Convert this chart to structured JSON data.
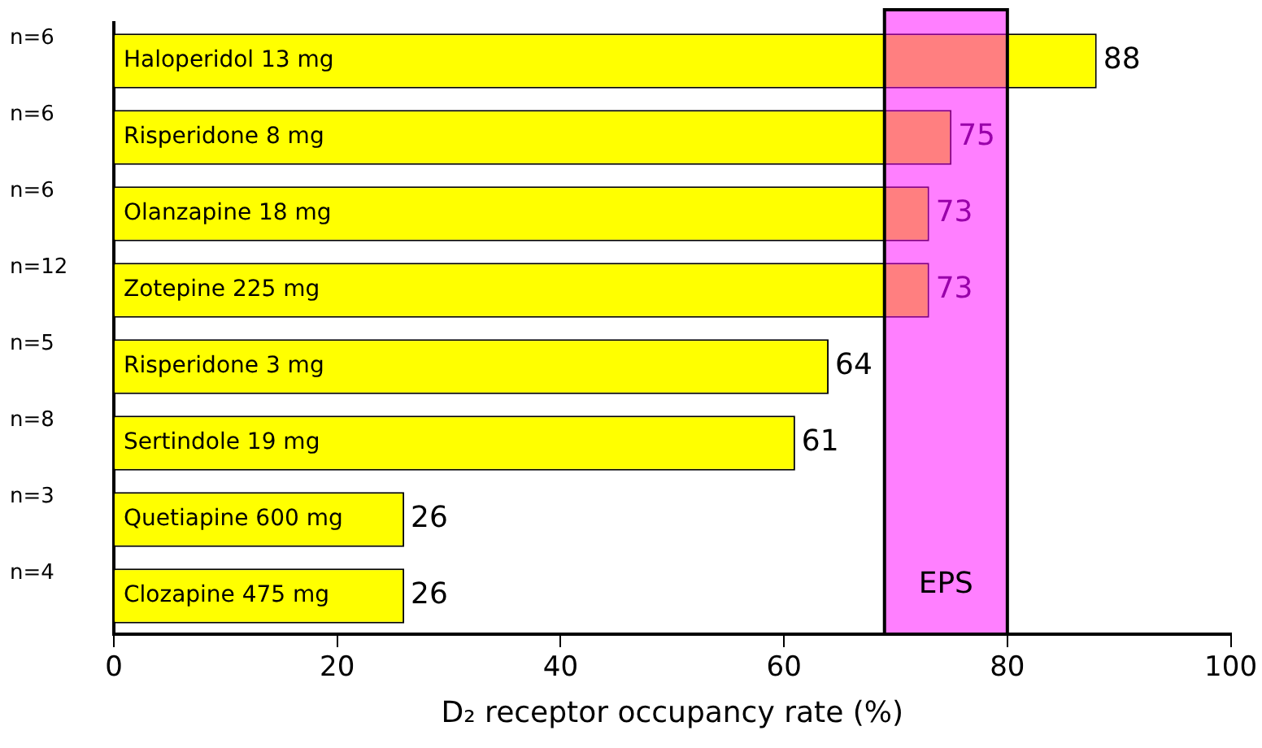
{
  "chart_data": {
    "type": "bar",
    "orientation": "horizontal",
    "xlabel": "D₂ receptor occupancy rate (%)",
    "categories": [
      "Haloperidol 13 mg",
      "Risperidone 8 mg",
      "Olanzapine 18 mg",
      "Zotepine 225 mg",
      "Risperidone 3 mg",
      "Sertindole 19 mg",
      "Quetiapine 600 mg",
      "Clozapine 475 mg"
    ],
    "values": [
      88,
      75,
      73,
      73,
      64,
      61,
      26,
      26
    ],
    "color": "#ffff00",
    "data_labels": true,
    "xlim": [
      0,
      100
    ],
    "xticks": [
      0,
      20,
      40,
      60,
      80,
      100
    ],
    "grid": false,
    "legend": false,
    "bands": [
      {
        "axis": "x",
        "from": 69,
        "to": 80,
        "label": "EPS",
        "color": "#ff00ff"
      }
    ],
    "annotations": [
      "n=6",
      "n=6",
      "n=6",
      "n=12",
      "n=5",
      "n=8",
      "n=3",
      "n=4"
    ]
  }
}
